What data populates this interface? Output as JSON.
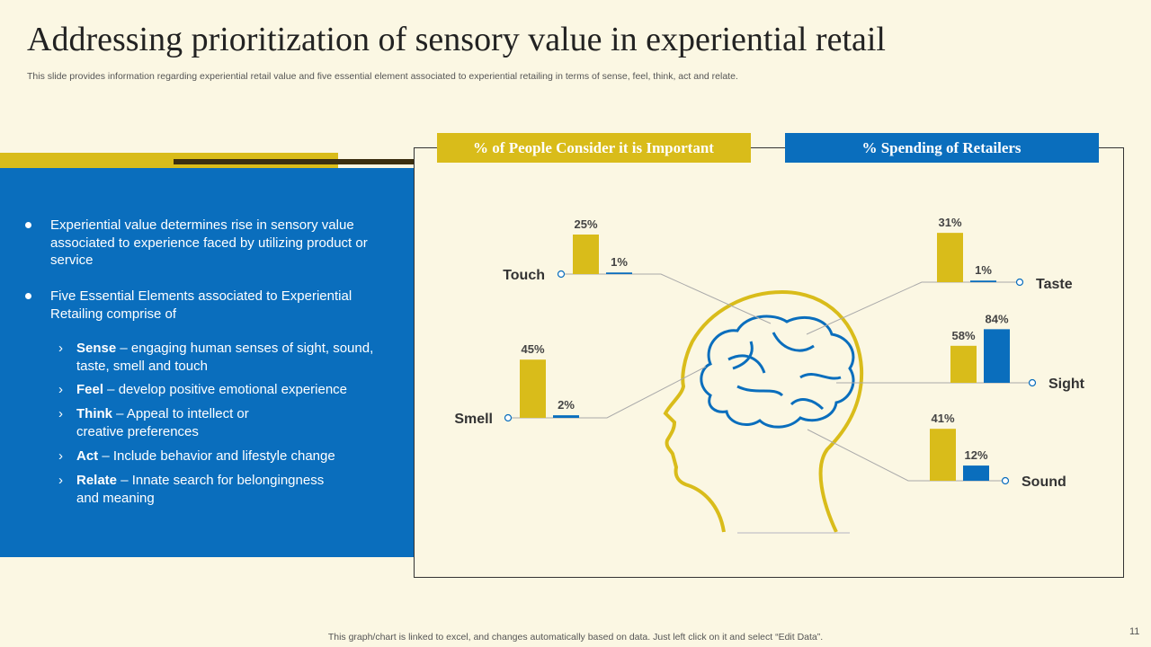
{
  "header": {
    "title": "Addressing prioritization of sensory value in experiential retail",
    "subtitle": "This slide provides information regarding experiential retail value and five  essential element associated to experiential retailing in terms of sense, feel, think, act and relate."
  },
  "panel": {
    "bullets": [
      "Experiential value determines rise in sensory value associated to experience faced by utilizing product or service",
      "Five Essential Elements associated to Experiential Retailing comprise of"
    ],
    "items": [
      {
        "term": "Sense",
        "text": " – engaging human senses of sight, sound, taste, smell and touch"
      },
      {
        "term": "Feel",
        "text": " – develop positive emotional experience"
      },
      {
        "term": "Think",
        "text": " – Appeal to intellect or creative preferences"
      },
      {
        "term": "Act",
        "text": " – Include  behavior and lifestyle change"
      },
      {
        "term": "Relate",
        "text": " – Innate  search for belongingness and meaning"
      }
    ]
  },
  "chart_data": {
    "type": "bar",
    "categories": [
      "Touch",
      "Smell",
      "Taste",
      "Sight",
      "Sound"
    ],
    "series": [
      {
        "name": "% of People Consider it is Important",
        "color": "#d9bc1a",
        "values": [
          25,
          45,
          31,
          58,
          41
        ],
        "value_labels": [
          "25%",
          "45%",
          "31%",
          "58%",
          "41%"
        ]
      },
      {
        "name": "% Spending of Retailers",
        "color": "#0a6ebd",
        "values": [
          1,
          2,
          1,
          84,
          12
        ],
        "value_labels": [
          "1%",
          "2%",
          "1%",
          "84%",
          "12%"
        ]
      }
    ]
  },
  "footer": {
    "note": "This graph/chart is linked to excel,  and changes automatically based on data. Just left click on it and select “Edit Data”.",
    "page": "11"
  }
}
